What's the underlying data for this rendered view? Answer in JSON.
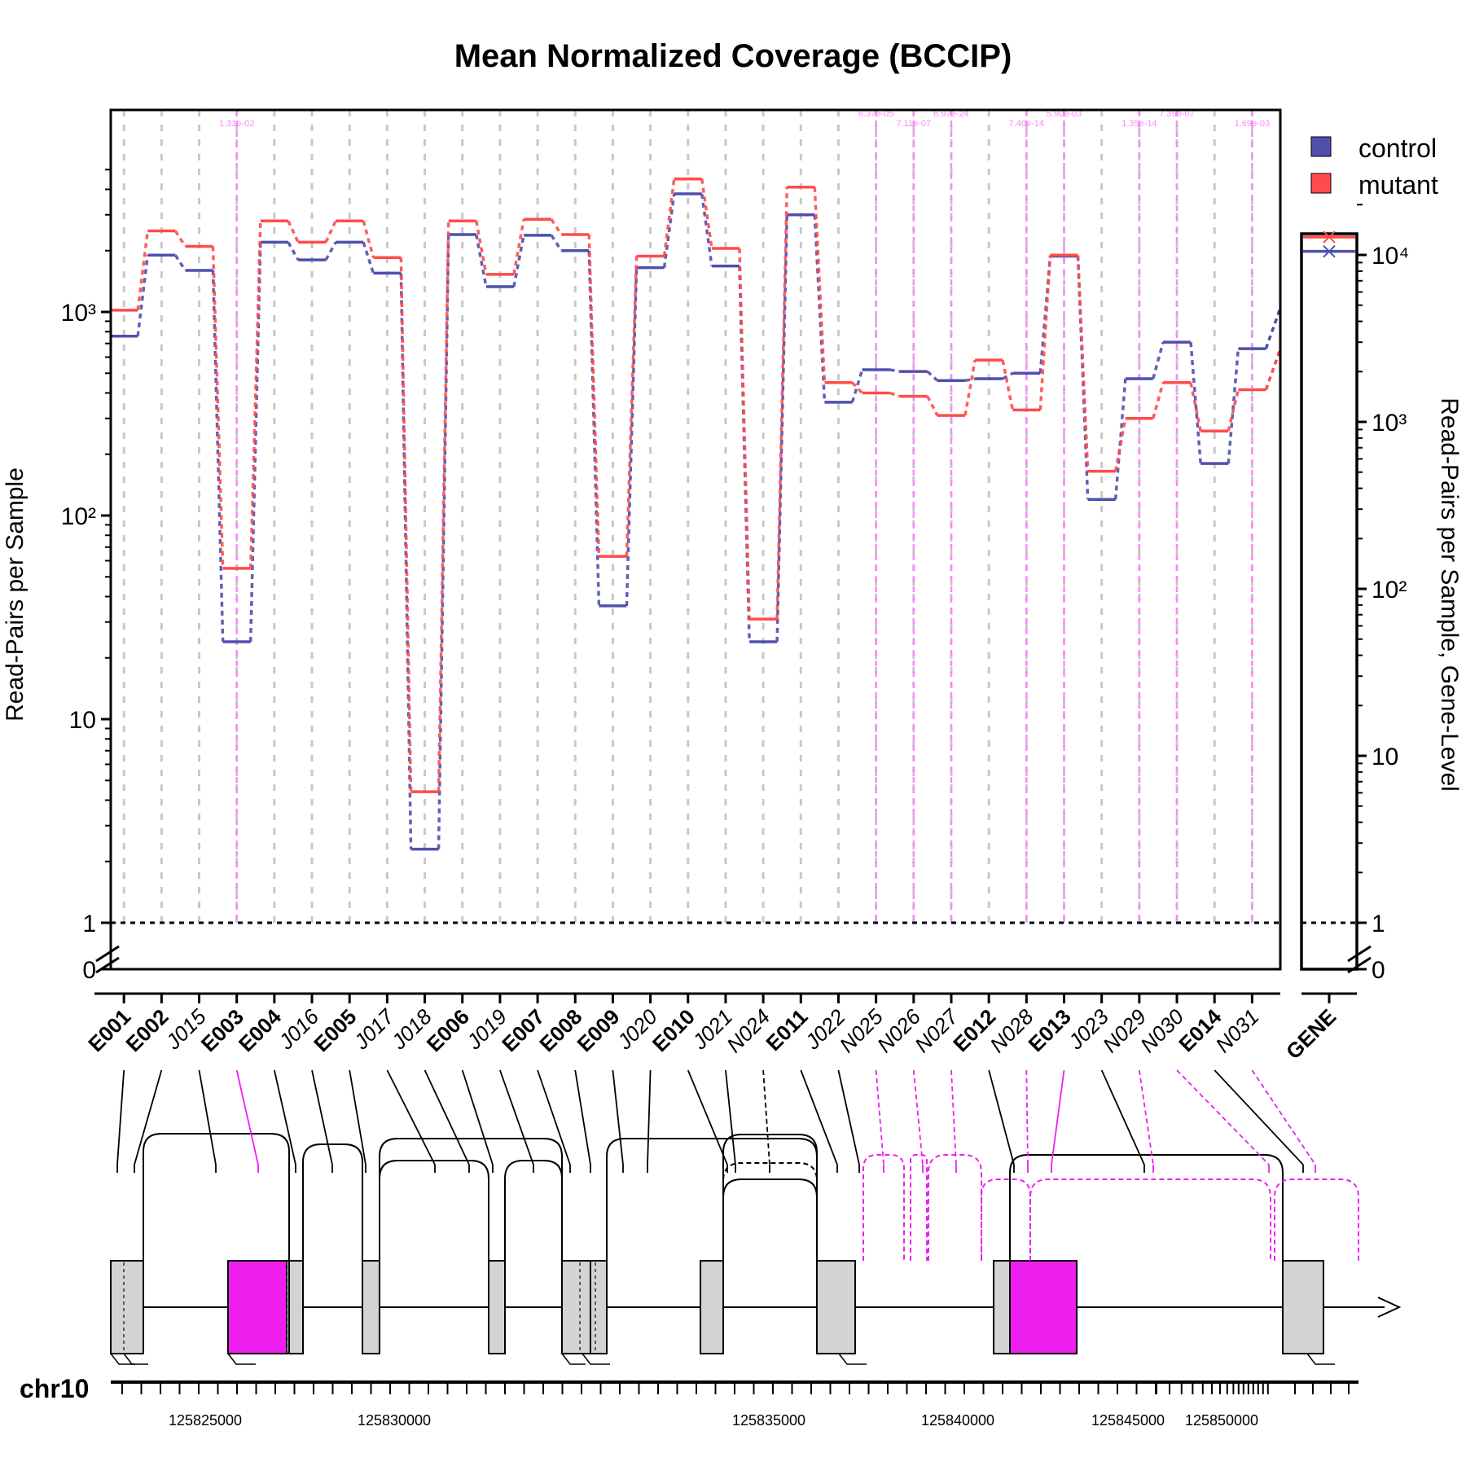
{
  "chart_data": {
    "type": "line",
    "title": "Mean Normalized Coverage (BCCIP)",
    "ylabel": "Read-Pairs per Sample",
    "ylabel_right": "Read-Pairs per Sample, Gene-Level",
    "scale": "log",
    "ylim": [
      0,
      5500
    ],
    "y_ticks": [
      {
        "value": 0,
        "label": "0"
      },
      {
        "value": 1,
        "label": "1"
      },
      {
        "value": 10,
        "label": "10"
      },
      {
        "value": 100,
        "label": "10²"
      },
      {
        "value": 1000,
        "label": "10³"
      }
    ],
    "gene_y_ticks": [
      {
        "value": 0,
        "label": "0"
      },
      {
        "value": 1,
        "label": "1"
      },
      {
        "value": 10,
        "label": "10"
      },
      {
        "value": 100,
        "label": "10²"
      },
      {
        "value": 1000,
        "label": "10³"
      },
      {
        "value": 10000,
        "label": "10⁴"
      }
    ],
    "grid": true,
    "legend_position": "top-right",
    "categories": [
      "E001",
      "E002",
      "J015",
      "E003",
      "E004",
      "J016",
      "E005",
      "J017",
      "J018",
      "E006",
      "J019",
      "E007",
      "E008",
      "E009",
      "J020",
      "E010",
      "J021",
      "N024",
      "E011",
      "J022",
      "N025",
      "N026",
      "N027",
      "E012",
      "N028",
      "E013",
      "J023",
      "N029",
      "N030",
      "E014",
      "N031"
    ],
    "bold_categories": [
      "E001",
      "E002",
      "E003",
      "E004",
      "E005",
      "E006",
      "E007",
      "E008",
      "E009",
      "E010",
      "E011",
      "E012",
      "E013",
      "E014"
    ],
    "gene_label": "GENE",
    "series": [
      {
        "name": "control",
        "color": "#4f4fae",
        "values": [
          760,
          1900,
          1600,
          24,
          2200,
          1800,
          2200,
          1550,
          2.3,
          2400,
          1330,
          2380,
          2000,
          36,
          1650,
          3800,
          1680,
          24,
          3000,
          360,
          520,
          510,
          460,
          470,
          500,
          1880,
          120,
          470,
          710,
          180,
          660
        ],
        "gene_value": 10500
      },
      {
        "name": "mutant",
        "color": "#ff4b4b",
        "values": [
          1020,
          2500,
          2100,
          55,
          2800,
          2200,
          2800,
          1850,
          4.4,
          2800,
          1530,
          2850,
          2400,
          63,
          1880,
          4500,
          2050,
          31,
          4100,
          450,
          400,
          385,
          310,
          580,
          330,
          1900,
          165,
          300,
          450,
          260,
          415
        ],
        "gene_value": 12800
      }
    ],
    "significant": [
      {
        "category": "E003",
        "pvalue": "1.31e-02"
      },
      {
        "category": "N025",
        "pvalue": "6.37e-05"
      },
      {
        "category": "N026",
        "pvalue": "7.11e-07"
      },
      {
        "category": "N027",
        "pvalue": "6.97e-24"
      },
      {
        "category": "N028",
        "pvalue": "7.40e-14"
      },
      {
        "category": "E013",
        "pvalue": "5.90e-03"
      },
      {
        "category": "N029",
        "pvalue": "1.35e-14"
      },
      {
        "category": "N030",
        "pvalue": "7.39e-07"
      },
      {
        "category": "N031",
        "pvalue": "1.69e-03"
      }
    ],
    "chromosome": "chr10",
    "x_ticks": [
      "125825000",
      "125830000",
      "125835000",
      "125840000",
      "125845000",
      "125850000"
    ]
  }
}
